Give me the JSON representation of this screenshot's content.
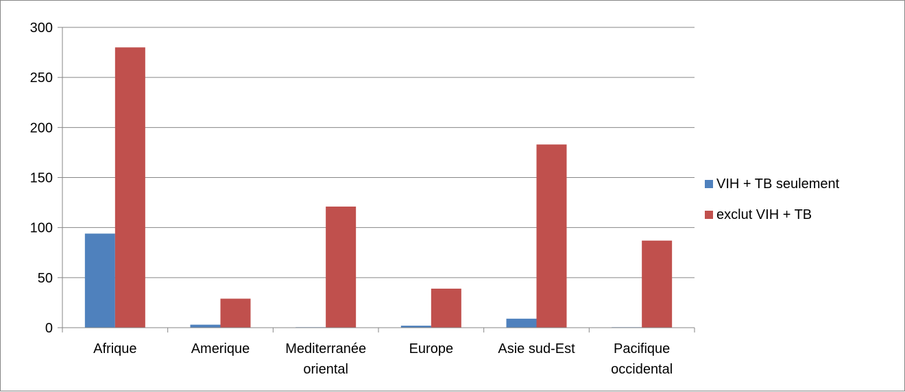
{
  "chart_data": {
    "type": "bar",
    "title": "",
    "xlabel": "",
    "ylabel": "",
    "categories": [
      [
        "Afrique"
      ],
      [
        "Amerique"
      ],
      [
        "Mediterranée",
        "oriental"
      ],
      [
        "Europe"
      ],
      [
        "Asie sud-Est"
      ],
      [
        "Pacifique",
        "occidental"
      ]
    ],
    "series": [
      {
        "name": "VIH + TB seulement",
        "color": "#4F81BD",
        "values": [
          94,
          3,
          0.5,
          2,
          9,
          0.5
        ]
      },
      {
        "name": "exclut VIH + TB",
        "color": "#C0504D",
        "values": [
          280,
          29,
          121,
          39,
          183,
          87
        ]
      }
    ],
    "ylim": [
      0,
      300
    ],
    "yticks": [
      0,
      50,
      100,
      150,
      200,
      250,
      300
    ],
    "grid": true,
    "legend_position": "right"
  }
}
